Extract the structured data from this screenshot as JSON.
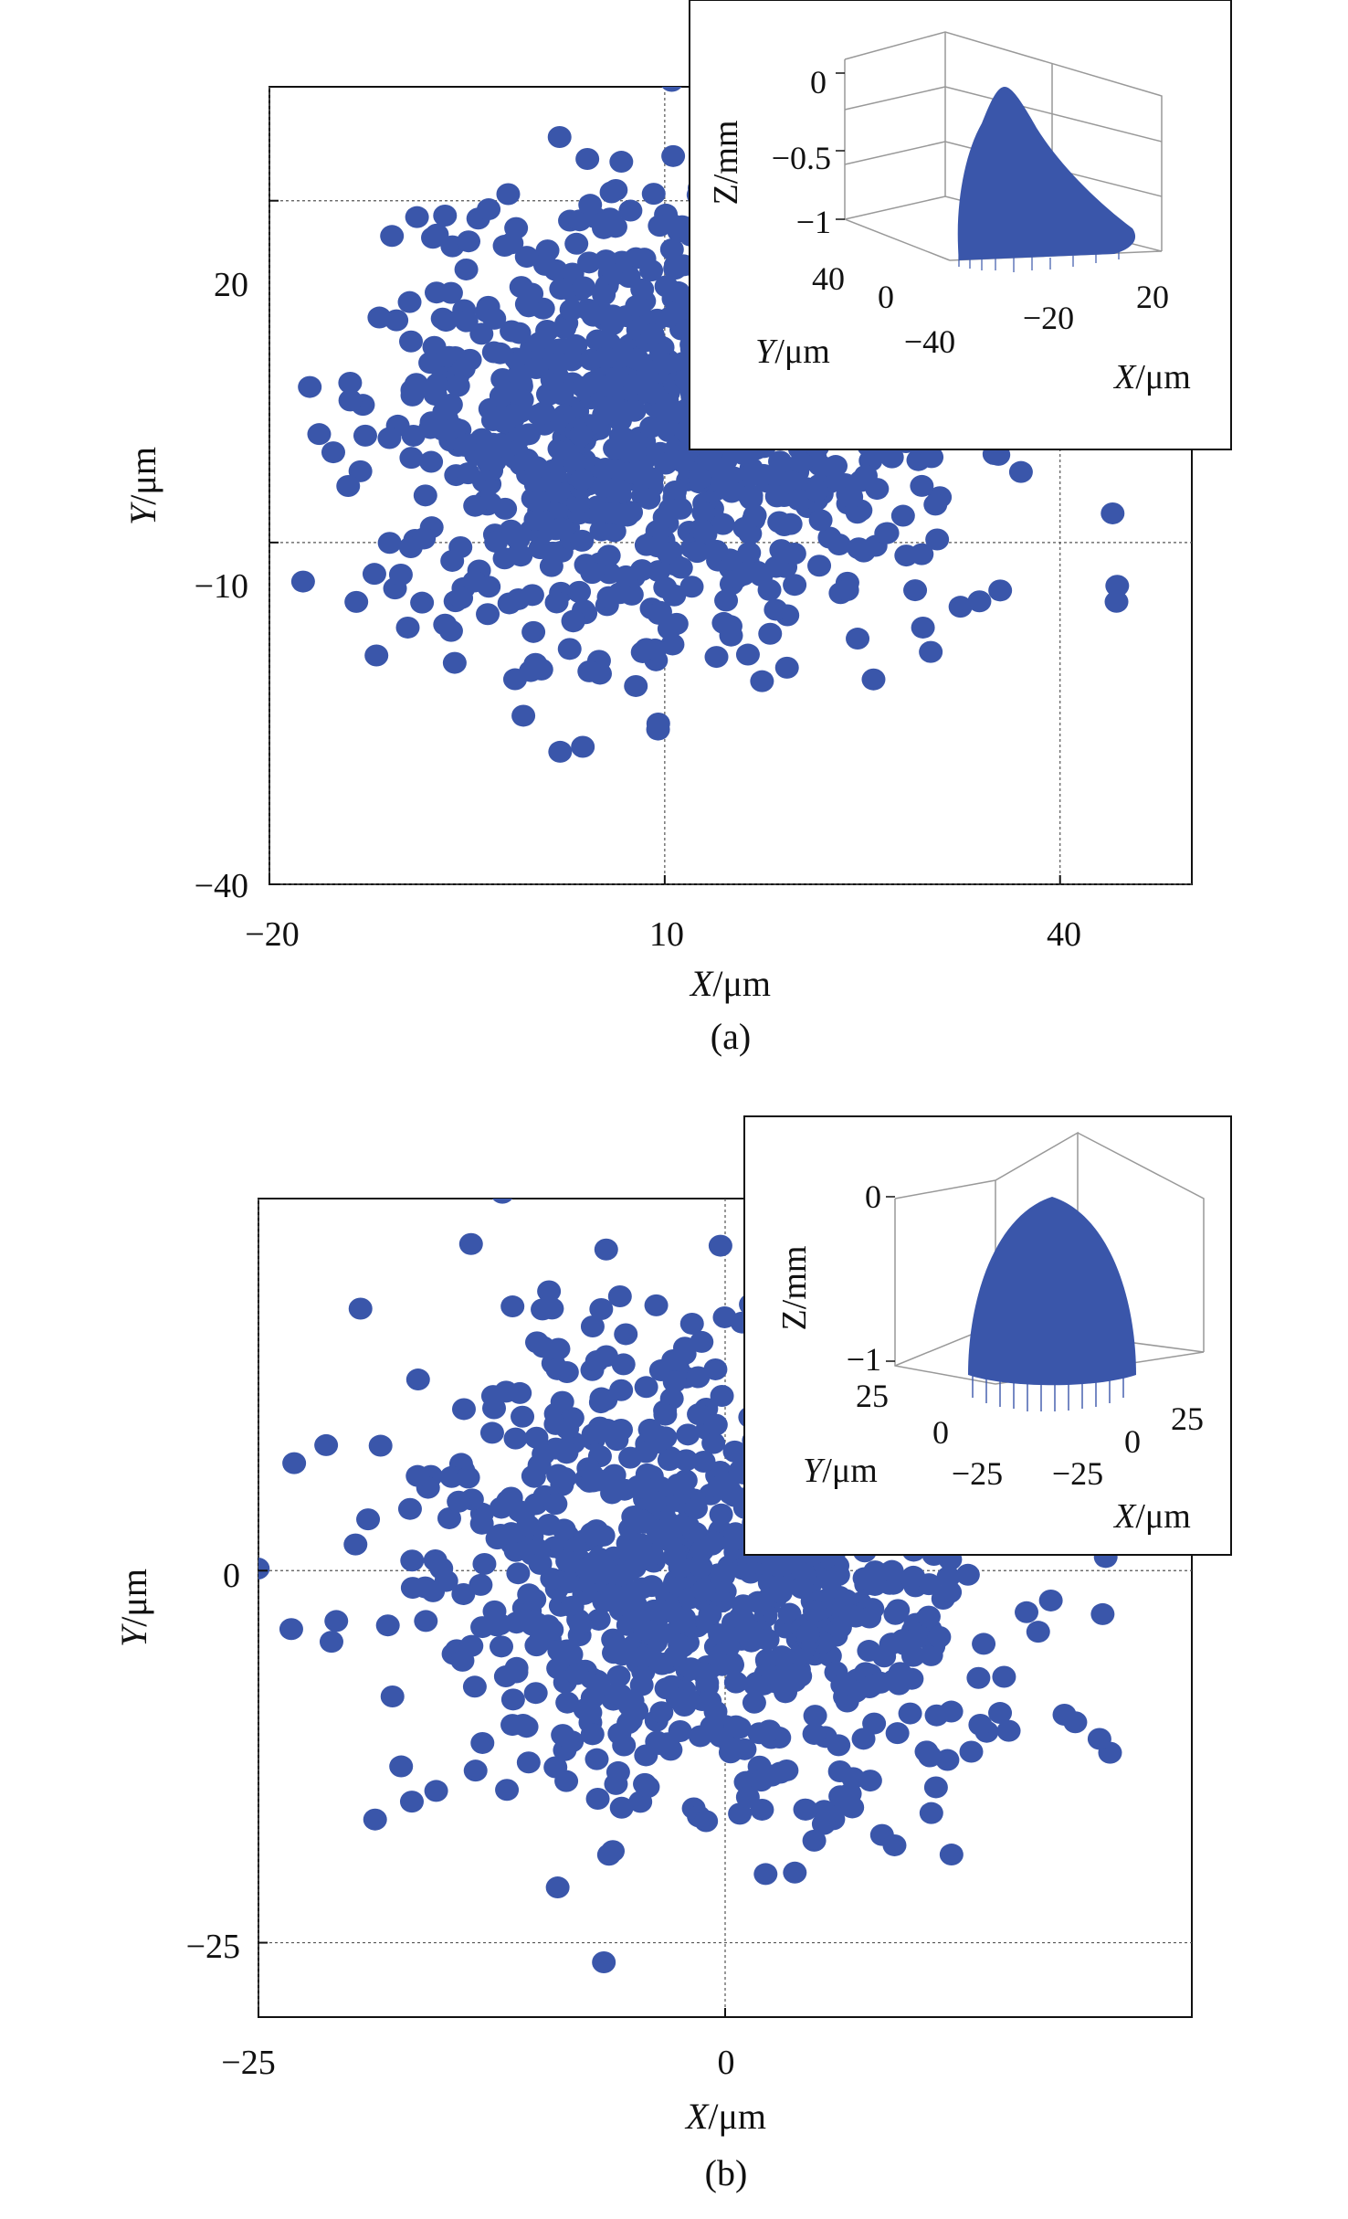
{
  "colors": {
    "marker": "#3a56aa",
    "axis": "#111111",
    "grid": "#555555",
    "inset_frame": "#999999"
  },
  "chart_data": [
    {
      "type": "scatter",
      "caption": "(a)",
      "xlabel_var": "X",
      "xlabel_unit": "/μm",
      "ylabel_var": "Y",
      "ylabel_unit": "/μm",
      "xlim": [
        -20,
        50
      ],
      "ylim": [
        -40,
        30
      ],
      "xticks": [
        -20,
        10,
        40
      ],
      "xtick_labels": [
        "−20",
        "10",
        "40"
      ],
      "yticks": [
        -40,
        -10,
        20
      ],
      "ytick_labels": [
        "−40",
        "−10",
        "20"
      ],
      "grid": true,
      "point_cloud": {
        "count": 900,
        "center": [
          10,
          0
        ],
        "std": [
          11,
          10
        ],
        "seed": 7
      },
      "inset": {
        "type": "3d-surface",
        "zlabel": "Z/mm",
        "ylabel_var": "Y",
        "ylabel_unit": "/μm",
        "xlabel_var": "X",
        "xlabel_unit": "/μm",
        "zticks": [
          "0",
          "−0.5",
          "−1"
        ],
        "yticks": [
          "40",
          "0",
          "−40"
        ],
        "xticks": [
          "−20",
          "20"
        ]
      }
    },
    {
      "type": "scatter",
      "caption": "(b)",
      "xlabel_var": "X",
      "xlabel_unit": "/μm",
      "ylabel_var": "Y",
      "ylabel_unit": "/μm",
      "xlim": [
        -25,
        25
      ],
      "ylim": [
        -30,
        25
      ],
      "xticks": [
        -25,
        0
      ],
      "xtick_labels": [
        "−25",
        "0"
      ],
      "yticks": [
        -25,
        0
      ],
      "ytick_labels": [
        "−25",
        "0"
      ],
      "grid": true,
      "point_cloud": {
        "count": 900,
        "center": [
          0,
          0
        ],
        "std": [
          8,
          8
        ],
        "seed": 13
      },
      "inset": {
        "type": "3d-surface",
        "zlabel": "Z/mm",
        "ylabel_var": "Y",
        "ylabel_unit": "/μm",
        "xlabel_var": "X",
        "xlabel_unit": "/μm",
        "zticks": [
          "0",
          "−1"
        ],
        "yticks": [
          "25",
          "0",
          "−25"
        ],
        "xticks": [
          "−25",
          "0",
          "25"
        ]
      }
    }
  ]
}
